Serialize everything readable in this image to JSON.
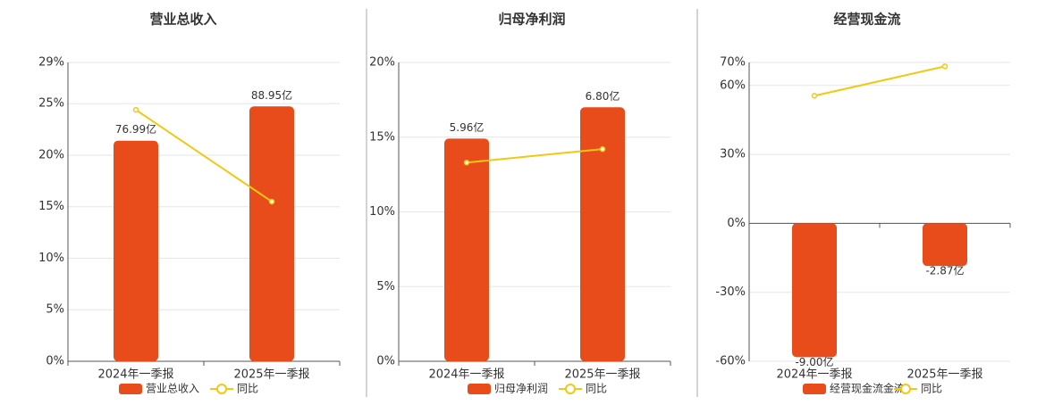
{
  "chart_data": [
    {
      "type": "bar",
      "title": "营业总收入",
      "categories": [
        "2024年一季报",
        "2025年一季报"
      ],
      "series": [
        {
          "name": "营业总收入",
          "color": "#e84c1a",
          "axis": "y2",
          "values": [
            76.99,
            88.95
          ],
          "value_labels": [
            "76.99亿",
            "88.95亿"
          ]
        },
        {
          "name": "同比",
          "color": "#f2c811",
          "values": [
            24.4,
            15.5
          ]
        }
      ],
      "ylim": [
        0,
        29
      ],
      "yticks": [
        {
          "value": 0,
          "label": "0%"
        },
        {
          "value": 5,
          "label": "5%"
        },
        {
          "value": 10,
          "label": "10%"
        },
        {
          "value": 15,
          "label": "15%"
        },
        {
          "value": 20,
          "label": "20%"
        },
        {
          "value": 25,
          "label": "25%"
        },
        {
          "value": 29,
          "label": "29%"
        }
      ],
      "y2lim": [
        0,
        104.3
      ],
      "grid": true
    },
    {
      "type": "bar",
      "title": "归母净利润",
      "categories": [
        "2024年一季报",
        "2025年一季报"
      ],
      "series": [
        {
          "name": "归母净利润",
          "color": "#e84c1a",
          "axis": "y2",
          "values": [
            5.96,
            6.8
          ],
          "value_labels": [
            "5.96亿",
            "6.80亿"
          ]
        },
        {
          "name": "同比",
          "color": "#f2c811",
          "values": [
            13.3,
            14.2
          ]
        }
      ],
      "ylim": [
        0,
        20
      ],
      "yticks": [
        {
          "value": 0,
          "label": "0%"
        },
        {
          "value": 5,
          "label": "5%"
        },
        {
          "value": 10,
          "label": "10%"
        },
        {
          "value": 15,
          "label": "15%"
        },
        {
          "value": 20,
          "label": "20%"
        }
      ],
      "y2lim": [
        0,
        8.0
      ],
      "grid": true
    },
    {
      "type": "bar",
      "title": "经营现金流",
      "categories": [
        "2024年一季报",
        "2025年一季报"
      ],
      "series": [
        {
          "name": "经营现金流金流",
          "color": "#e84c1a",
          "axis": "y2",
          "values": [
            -9.0,
            -2.87
          ],
          "value_labels": [
            "-9.00亿",
            "-2.87亿"
          ]
        },
        {
          "name": "同比",
          "color": "#f2c811",
          "values": [
            55.5,
            68.3
          ]
        }
      ],
      "ylim": [
        -60,
        70
      ],
      "yticks": [
        {
          "value": -60,
          "label": "-60%"
        },
        {
          "value": -30,
          "label": "-30%"
        },
        {
          "value": 0,
          "label": "0%"
        },
        {
          "value": 30,
          "label": "30%"
        },
        {
          "value": 60,
          "label": "60%"
        },
        {
          "value": 70,
          "label": "70%"
        }
      ],
      "y2lim": [
        -9.28,
        10.82
      ],
      "grid": true
    }
  ]
}
